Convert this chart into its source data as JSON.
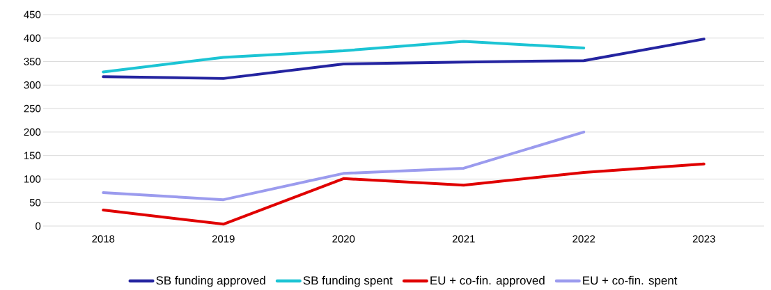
{
  "chart_data": {
    "type": "line",
    "categories": [
      "2018",
      "2019",
      "2020",
      "2021",
      "2022",
      "2023"
    ],
    "series": [
      {
        "name": "SB funding approved",
        "color": "#2424a0",
        "values": [
          318,
          314,
          345,
          349,
          352,
          398
        ]
      },
      {
        "name": "SB funding spent",
        "color": "#1cc4d4",
        "values": [
          328,
          359,
          373,
          393,
          379,
          null
        ]
      },
      {
        "name": "EU + co-fin. approved",
        "color": "#e00000",
        "values": [
          34,
          4,
          101,
          87,
          114,
          132
        ]
      },
      {
        "name": "EU + co-fin. spent",
        "color": "#9b9bee",
        "values": [
          71,
          56,
          112,
          123,
          200,
          null
        ]
      }
    ],
    "ylim": [
      0,
      450
    ],
    "yticks": [
      0,
      50,
      100,
      150,
      200,
      250,
      300,
      350,
      400,
      450
    ],
    "grid": "y",
    "legend": "bottom",
    "marker": "none",
    "line_style": "solid"
  }
}
